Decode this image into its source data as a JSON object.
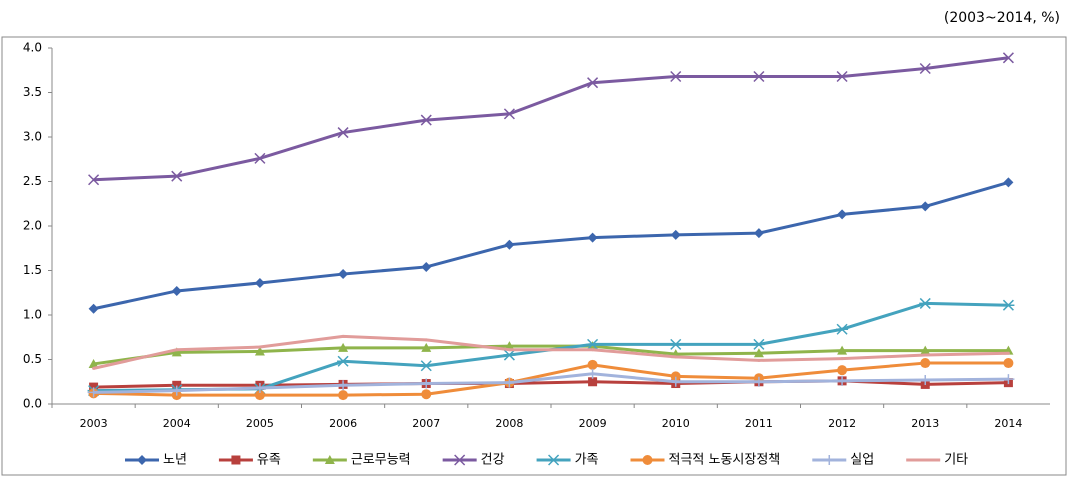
{
  "chart_data": {
    "type": "line",
    "note": "(2003~2014, %)",
    "categories": [
      "2003",
      "2004",
      "2005",
      "2006",
      "2007",
      "2008",
      "2009",
      "2010",
      "2011",
      "2012",
      "2013",
      "2014"
    ],
    "ylim": [
      0,
      4
    ],
    "yticks": [
      {
        "value": 0,
        "label": "0.0"
      },
      0.5,
      {
        "value": 1,
        "label": "1.0"
      },
      1.5,
      {
        "value": 2,
        "label": "2.0"
      },
      2.5,
      {
        "value": 3,
        "label": "3.0"
      },
      3.5,
      {
        "value": 4,
        "label": "4.0"
      }
    ],
    "grid": false,
    "series": [
      {
        "name": "노년",
        "color": "#3c66ad",
        "marker": "diamond",
        "values": [
          1.07,
          1.27,
          1.36,
          1.46,
          1.54,
          1.79,
          1.87,
          1.9,
          1.92,
          2.13,
          2.22,
          2.49
        ]
      },
      {
        "name": "유족",
        "color": "#b8403d",
        "marker": "square",
        "values": [
          0.19,
          0.21,
          0.21,
          0.22,
          0.23,
          0.23,
          0.25,
          0.23,
          0.25,
          0.26,
          0.22,
          0.24
        ]
      },
      {
        "name": "근로무능력",
        "color": "#8fb44b",
        "marker": "triangle",
        "values": [
          0.45,
          0.58,
          0.59,
          0.63,
          0.63,
          0.65,
          0.65,
          0.56,
          0.57,
          0.6,
          0.6,
          0.6
        ]
      },
      {
        "name": "건강",
        "color": "#7b5aa0",
        "marker": "x",
        "values": [
          2.52,
          2.56,
          2.76,
          3.05,
          3.19,
          3.26,
          3.61,
          3.68,
          3.68,
          3.68,
          3.77,
          3.89
        ]
      },
      {
        "name": "가족",
        "color": "#44a3be",
        "marker": "star",
        "values": [
          0.15,
          0.16,
          0.17,
          0.48,
          0.43,
          0.55,
          0.67,
          0.67,
          0.67,
          0.84,
          1.13,
          1.11
        ]
      },
      {
        "name": "적극적 노동시장정책",
        "color": "#ef8c3a",
        "marker": "circle",
        "values": [
          0.12,
          0.1,
          0.1,
          0.1,
          0.11,
          0.24,
          0.44,
          0.31,
          0.29,
          0.38,
          0.46,
          0.46
        ]
      },
      {
        "name": "실업",
        "color": "#a2b3dc",
        "marker": "plus",
        "values": [
          0.13,
          0.15,
          0.18,
          0.21,
          0.23,
          0.24,
          0.34,
          0.25,
          0.25,
          0.26,
          0.27,
          0.28
        ]
      },
      {
        "name": "기타",
        "color": "#e19c9a",
        "marker": "none",
        "values": [
          0.4,
          0.61,
          0.64,
          0.76,
          0.72,
          0.61,
          0.61,
          0.53,
          0.49,
          0.51,
          0.55,
          0.57
        ]
      }
    ]
  }
}
